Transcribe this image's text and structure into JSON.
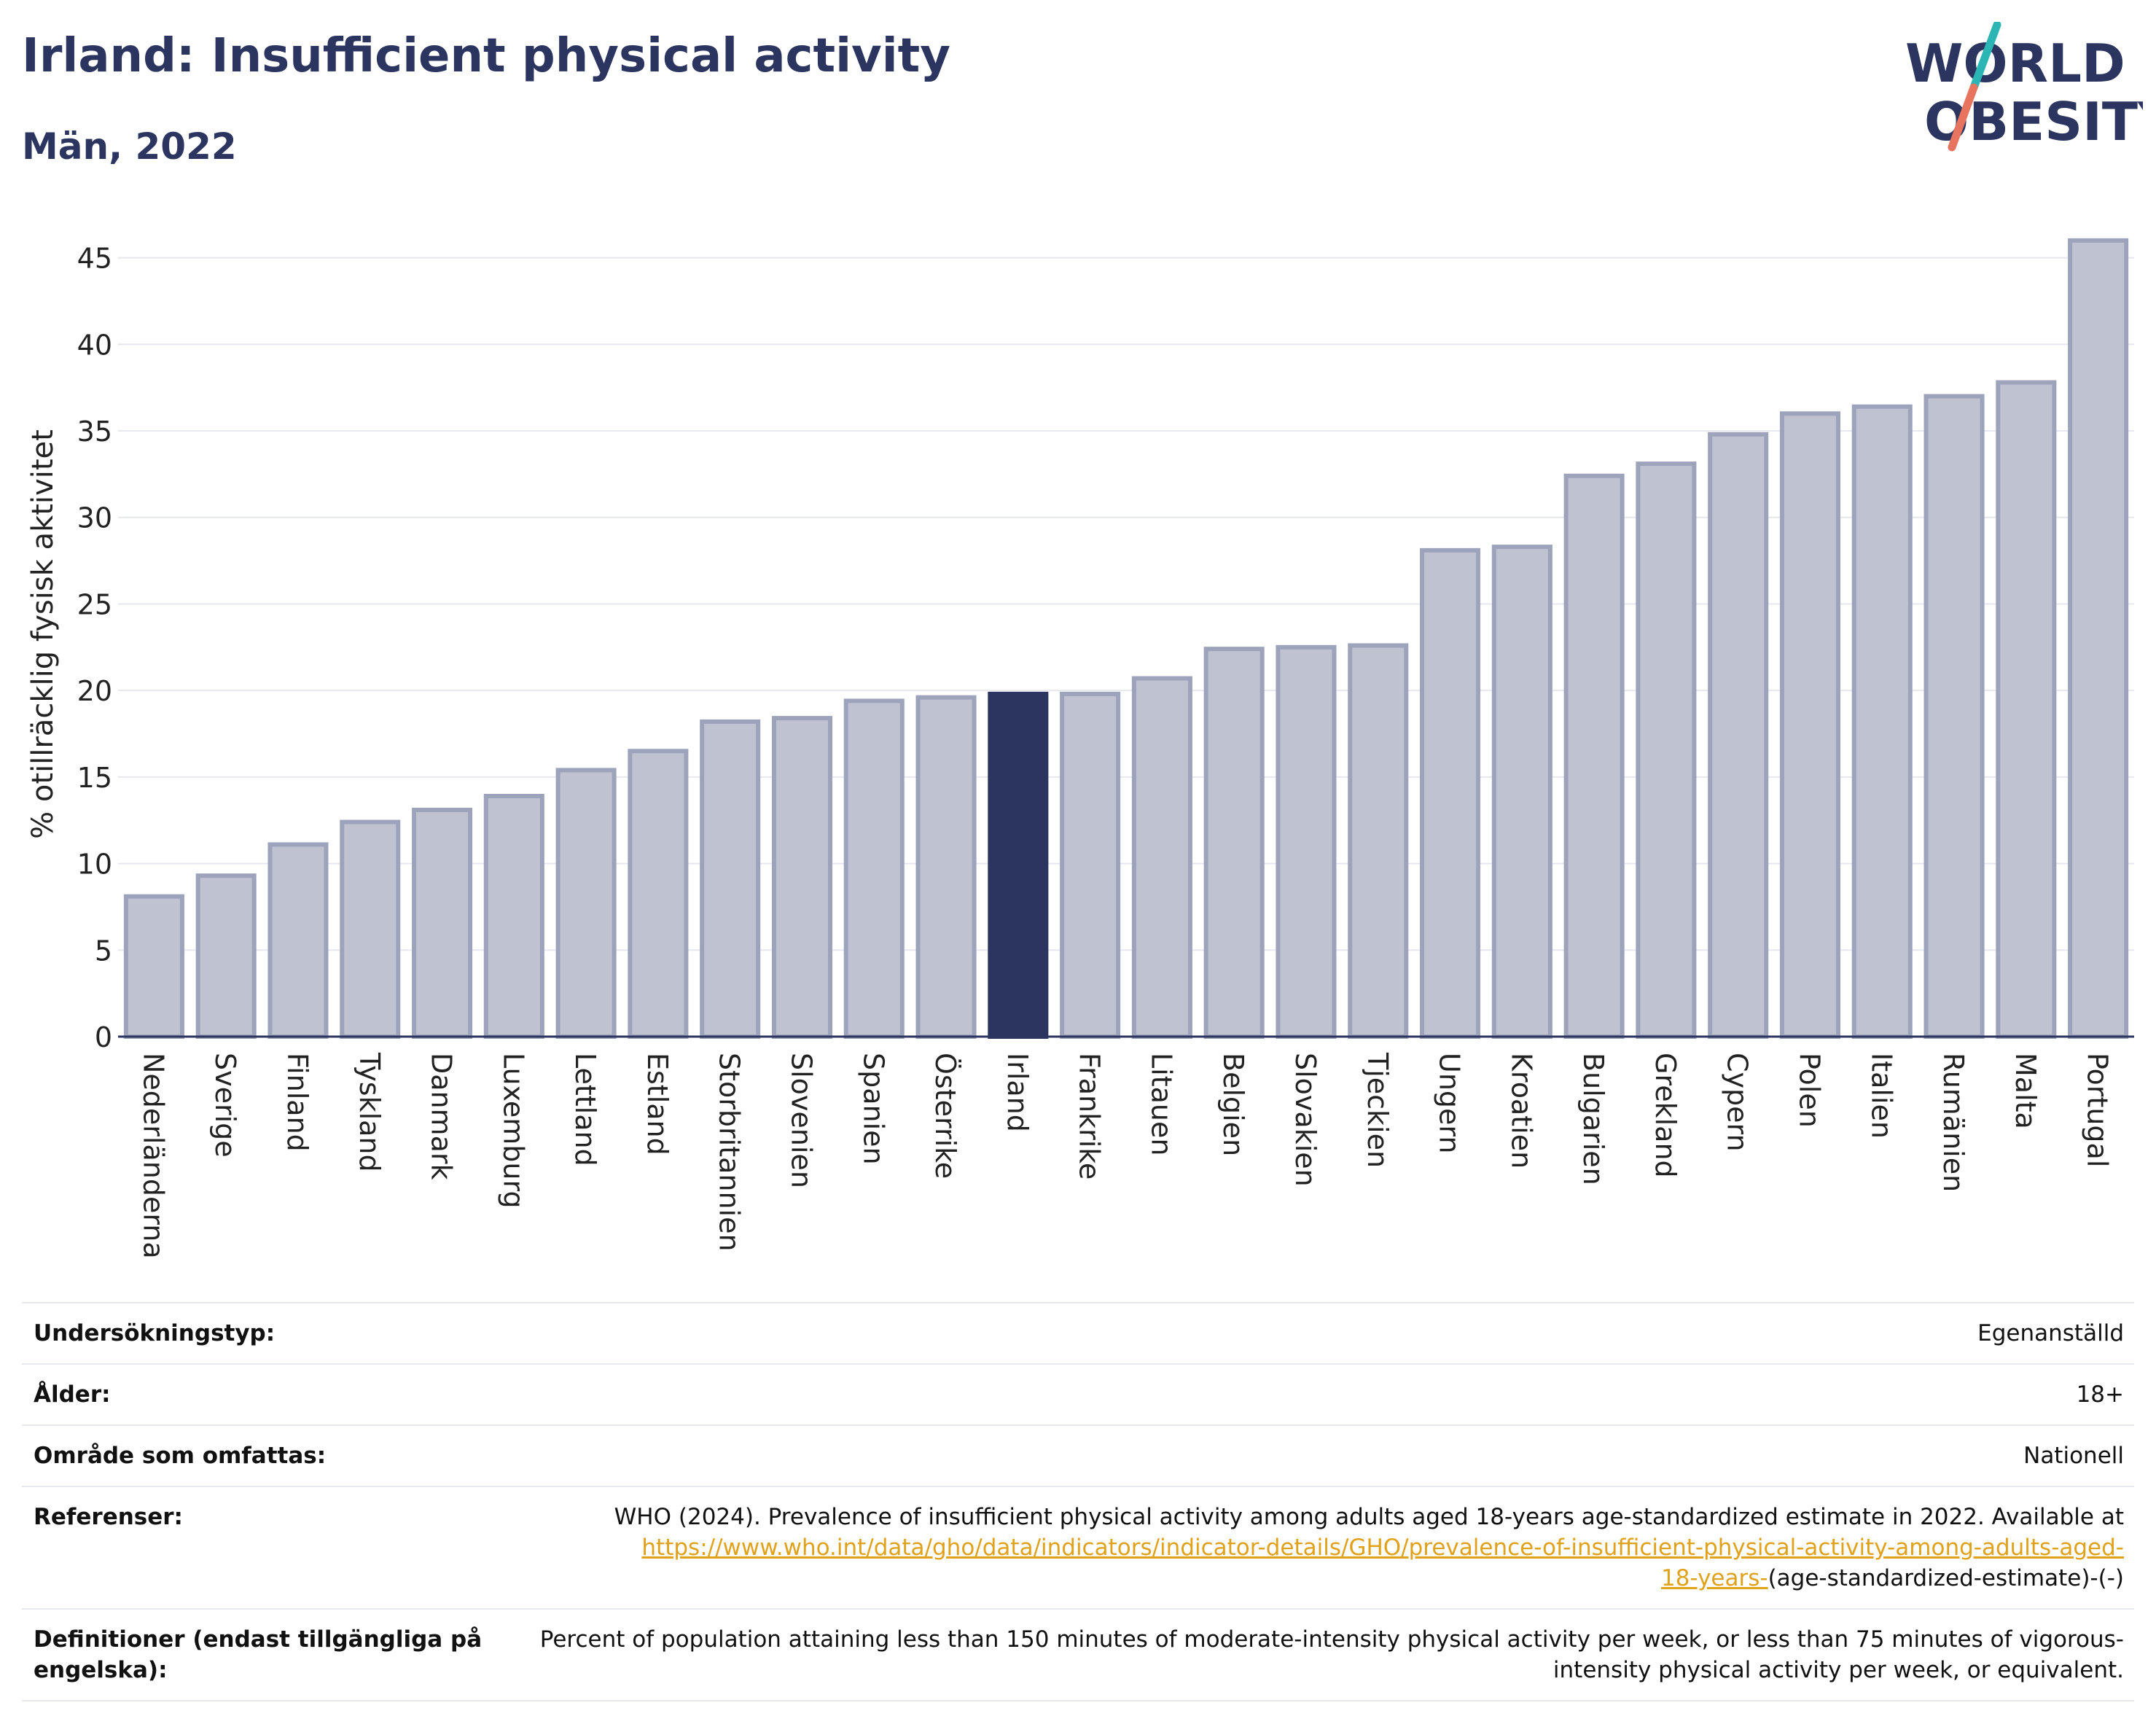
{
  "header": {
    "title": "Irland: Insufficient physical activity",
    "subtitle": "Män, 2022"
  },
  "logo": {
    "line1": "WORLD",
    "line2": "OBESITY",
    "colors": {
      "text": "#2b3560",
      "slash_top": "#2bb5b5",
      "slash_bottom": "#e8735f"
    }
  },
  "colors": {
    "bar": "#bfc2d0",
    "bar_border": "#9ea3bc",
    "highlight": "#2b3560",
    "grid": "#e6e8ee",
    "axis": "#2b3560",
    "text": "#222222"
  },
  "chart_data": {
    "type": "bar",
    "title": "Irland: Insufficient physical activity",
    "subtitle": "Män, 2022",
    "ylabel": "% otillräcklig fysisk aktivitet",
    "xlabel": "",
    "ylim": [
      0,
      46.5
    ],
    "yticks": [
      0,
      5,
      10,
      15,
      20,
      25,
      30,
      35,
      40,
      45
    ],
    "grid": true,
    "legend": "none",
    "highlight": "Irland",
    "categories": [
      "Nederländerna",
      "Sverige",
      "Finland",
      "Tyskland",
      "Danmark",
      "Luxemburg",
      "Lettland",
      "Estland",
      "Storbritannien",
      "Slovenien",
      "Spanien",
      "Österrike",
      "Irland",
      "Frankrike",
      "Litauen",
      "Belgien",
      "Slovakien",
      "Tjeckien",
      "Ungern",
      "Kroatien",
      "Bulgarien",
      "Grekland",
      "Cypern",
      "Polen",
      "Italien",
      "Rumänien",
      "Malta",
      "Portugal"
    ],
    "values": [
      8.1,
      9.3,
      11.1,
      12.4,
      13.1,
      13.9,
      15.4,
      16.5,
      18.2,
      18.4,
      19.4,
      19.6,
      19.8,
      19.8,
      20.7,
      22.4,
      22.5,
      22.6,
      28.1,
      28.3,
      32.4,
      33.1,
      34.8,
      36.0,
      36.4,
      37.0,
      37.8,
      46.0
    ]
  },
  "meta": {
    "survey_type": {
      "label": "Undersökningstyp:",
      "value": "Egenanställd"
    },
    "age": {
      "label": "Ålder:",
      "value": "18+"
    },
    "coverage": {
      "label": "Område som omfattas:",
      "value": "Nationell"
    },
    "references": {
      "label": "Referenser:",
      "text": "WHO (2024). Prevalence of insufficient physical activity among adults aged 18-years age-standardized estimate in 2022. Available at",
      "link_line1": "https://www.who.int/data/gho/data/indicators/indicator-details/GHO/prevalence-of-insufficient-physical-activity-among-adults-aged-",
      "link_line2": "18-years-",
      "suffix": "(age-standardized-estimate)-(-)"
    },
    "definitions": {
      "label": "Definitioner (endast tillgängliga på engelska):",
      "value": "Percent of population attaining less than 150 minutes of moderate-intensity physical activity per week, or less than 75 minutes of vigorous-intensity physical activity per week, or equivalent."
    }
  }
}
